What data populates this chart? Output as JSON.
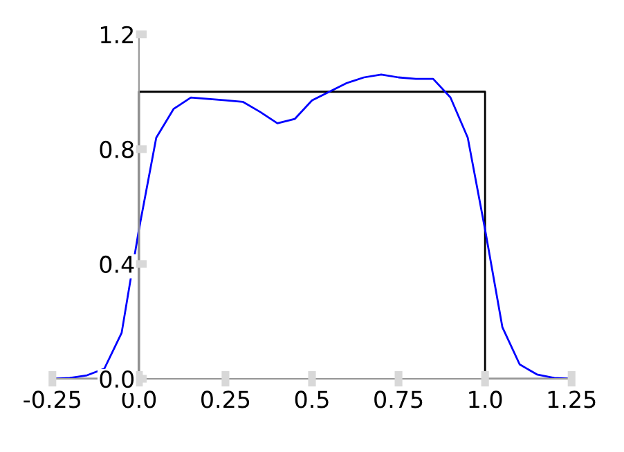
{
  "chart_data": {
    "type": "line",
    "xlim": [
      -0.25,
      1.25
    ],
    "ylim": [
      0,
      1.2
    ],
    "xticks": [
      -0.25,
      {
        "value": 0,
        "label": "0.0"
      },
      0.25,
      0.5,
      0.75,
      {
        "value": 1,
        "label": "1.0"
      },
      1.25
    ],
    "yticks": [
      {
        "value": 0,
        "label": "0.0"
      },
      0.4,
      0.8,
      1.2
    ],
    "grid": false,
    "legend": false,
    "marker": "none",
    "line_style": "solid",
    "series": [
      {
        "color": "#000000",
        "x": [
          -0.25,
          0,
          0,
          1,
          1,
          1.25
        ],
        "values": [
          0,
          0,
          1,
          1,
          0,
          0
        ]
      },
      {
        "color": "#0000ff",
        "x": [
          -0.25,
          -0.2,
          -0.15,
          -0.1,
          -0.05,
          0,
          0.05,
          0.1,
          0.15,
          0.2,
          0.25,
          0.3,
          0.35,
          0.4,
          0.45,
          0.5,
          0.55,
          0.6,
          0.65,
          0.7,
          0.75,
          0.8,
          0.85,
          0.9,
          0.95,
          1.0,
          1.05,
          1.1,
          1.15,
          1.2,
          1.25
        ],
        "values": [
          0.0,
          0.003,
          0.012,
          0.035,
          0.16,
          0.52,
          0.84,
          0.94,
          0.98,
          0.975,
          0.97,
          0.965,
          0.93,
          0.89,
          0.905,
          0.97,
          1.0,
          1.03,
          1.05,
          1.06,
          1.05,
          1.045,
          1.045,
          0.98,
          0.84,
          0.52,
          0.18,
          0.05,
          0.015,
          0.003,
          0.0
        ]
      }
    ]
  }
}
